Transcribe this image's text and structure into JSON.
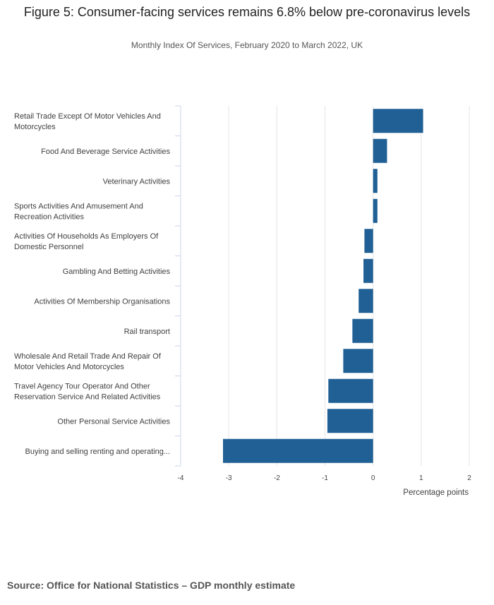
{
  "title": "Figure 5: Consumer-facing services remains 6.8% below pre-coronavirus levels",
  "subtitle": "Monthly Index Of Services, February 2020 to March 2022, UK",
  "source": "Source: Office for National Statistics – GDP monthly estimate",
  "colors": {
    "bar": "#206095",
    "grid": "#e5e5e5",
    "axis": "#ccd6eb"
  },
  "chart_data": {
    "type": "bar",
    "orientation": "horizontal",
    "categories": [
      "Retail Trade Except Of Motor Vehicles And Motorcycles",
      "Food And Beverage Service Activities",
      "Veterinary Activities",
      "Sports Activities And Amusement And Recreation Activities",
      "Activities Of Households As Employers Of Domestic Personnel",
      "Gambling And Betting Activities",
      "Activities Of Membership Organisations",
      "Rail transport",
      "Wholesale And Retail Trade And Repair Of Motor Vehicles And Motorcycles",
      "Travel Agency Tour Operator And Other Reservation Service And Related Activities",
      "Other Personal Service Activities",
      "Buying and selling renting and operating..."
    ],
    "category_display": [
      [
        "Retail Trade Except Of Motor Vehicles And",
        "Motorcycles"
      ],
      [
        "Food And Beverage Service Activities"
      ],
      [
        "Veterinary Activities"
      ],
      [
        "Sports Activities And Amusement And",
        "Recreation Activities"
      ],
      [
        "Activities Of Households As Employers Of",
        "Domestic Personnel"
      ],
      [
        "Gambling And Betting Activities"
      ],
      [
        "Activities Of Membership Organisations"
      ],
      [
        "Rail transport"
      ],
      [
        "Wholesale And Retail Trade And Repair Of",
        "Motor Vehicles And Motorcycles"
      ],
      [
        "Travel Agency Tour Operator And Other",
        "Reservation Service And Related Activities"
      ],
      [
        "Other Personal Service Activities"
      ],
      [
        "Buying and selling renting and operating..."
      ]
    ],
    "values": [
      1.04,
      0.29,
      0.09,
      0.09,
      -0.18,
      -0.2,
      -0.3,
      -0.43,
      -0.62,
      -0.93,
      -0.95,
      -3.12
    ],
    "xlabel": "Percentage points",
    "xlim": [
      -4,
      2
    ],
    "xticks": [
      "-4",
      "-3",
      "-2",
      "-1",
      "0",
      "1",
      "2"
    ],
    "grid": true,
    "legend": "none"
  }
}
